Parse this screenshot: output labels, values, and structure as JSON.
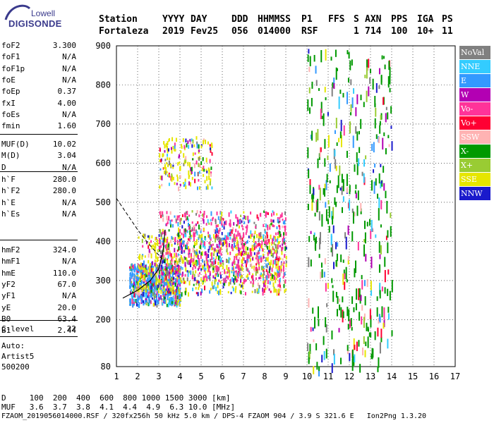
{
  "logo": {
    "line1": "Lowell",
    "line2": "DIGISONDE"
  },
  "header": {
    "labels": [
      "Station",
      "YYYY",
      "DAY",
      "DDD",
      "HHMMSS",
      "P1",
      "FFS",
      "S",
      "AXN",
      "PPS",
      "IGA",
      "PS"
    ],
    "values": [
      "Fortaleza",
      "2019",
      "Fev25",
      "056",
      "014000",
      "RSF",
      "1",
      "714",
      "100",
      "10+",
      "11"
    ]
  },
  "params": {
    "group1": [
      {
        "label": "foF2",
        "value": "3.300"
      },
      {
        "label": "foF1",
        "value": "N/A"
      },
      {
        "label": "foF1p",
        "value": "N/A"
      },
      {
        "label": "foE",
        "value": "N/A"
      },
      {
        "label": "foEp",
        "value": "0.37"
      },
      {
        "label": "fxI",
        "value": "4.00"
      },
      {
        "label": "foEs",
        "value": "N/A"
      },
      {
        "label": "fmin",
        "value": "1.60"
      }
    ],
    "group2": [
      {
        "label": "MUF(D)",
        "value": "10.02"
      },
      {
        "label": "M(D)",
        "value": "3.04"
      },
      {
        "label": "D",
        "value": "N/A"
      }
    ],
    "group3": [
      {
        "label": "h`F",
        "value": "280.0"
      },
      {
        "label": "h`F2",
        "value": "280.0"
      },
      {
        "label": "h`E",
        "value": "N/A"
      },
      {
        "label": "h`Es",
        "value": "N/A"
      }
    ],
    "group4": [
      {
        "label": "hmF2",
        "value": "324.0"
      },
      {
        "label": "hmF1",
        "value": "N/A"
      },
      {
        "label": "hmE",
        "value": "110.0"
      },
      {
        "label": "yF2",
        "value": "67.0"
      },
      {
        "label": "yF1",
        "value": "N/A"
      },
      {
        "label": "yE",
        "value": "20.0"
      },
      {
        "label": "B0",
        "value": "63.4"
      },
      {
        "label": "B1",
        "value": "2.44"
      }
    ],
    "group5": [
      {
        "label": "C-level",
        "value": "22"
      }
    ],
    "auto_lines": [
      "Auto:",
      "Artist5",
      "500200"
    ]
  },
  "legend": [
    {
      "label": "NoVal",
      "color": "#808080"
    },
    {
      "label": "NNE",
      "color": "#33ccff"
    },
    {
      "label": "E",
      "color": "#3399ff"
    },
    {
      "label": "W",
      "color": "#b300b3"
    },
    {
      "label": "Vo-",
      "color": "#ff3399"
    },
    {
      "label": "Vo+",
      "color": "#ff0033"
    },
    {
      "label": "SSW",
      "color": "#ffb3b3"
    },
    {
      "label": "X-",
      "color": "#009900"
    },
    {
      "label": "X+",
      "color": "#99cc33"
    },
    {
      "label": "SSE",
      "color": "#e6e600"
    },
    {
      "label": "NNW",
      "color": "#1a1acc"
    }
  ],
  "footer": {
    "d_line": "D     100  200  400  600  800 1000 1500 3000 [km]",
    "muf_line": "MUF   3.6  3.7  3.8  4.1  4.4  4.9  6.3 10.0 [MHz]",
    "file_line": "FZAOM_2019056014000.RSF / 320fx256h 50 kHz 5.0 km / DPS-4 FZAOM 904 / 3.9 S 321.6 E   Ion2Png 1.3.20"
  },
  "chart_data": {
    "type": "scatter",
    "xlim": [
      1,
      17
    ],
    "ylim": [
      80,
      900
    ],
    "x_ticks": [
      1,
      2,
      3,
      4,
      5,
      6,
      7,
      8,
      9,
      10,
      11,
      12,
      13,
      14,
      15,
      16,
      17
    ],
    "y_ticks": [
      80,
      200,
      300,
      400,
      500,
      600,
      700,
      800,
      900
    ],
    "grid": true,
    "legend_position": "right",
    "traces": [
      {
        "name": "trace-f2",
        "color": "#3399ff",
        "x_range": [
          1.6,
          4.0
        ],
        "y_range": [
          240,
          345
        ]
      },
      {
        "name": "trace-f2-main",
        "color": "#e6e600",
        "x_range": [
          2.0,
          9.0
        ],
        "y_range": [
          270,
          420
        ]
      },
      {
        "name": "trace-spread",
        "color": "#ff3399",
        "x_range": [
          3.0,
          9.0
        ],
        "y_range": [
          300,
          480
        ]
      },
      {
        "name": "trace-high",
        "color": "#e6e600",
        "x_range": [
          3.0,
          5.5
        ],
        "y_range": [
          540,
          670
        ]
      },
      {
        "name": "trace-vertical",
        "color": "#009900",
        "x_range": [
          10.0,
          14.0
        ],
        "y_range": [
          80,
          900
        ]
      }
    ],
    "profile_dashed": [
      [
        1.0,
        510
      ],
      [
        1.5,
        470
      ],
      [
        2.0,
        430
      ],
      [
        2.5,
        395
      ],
      [
        3.0,
        365
      ],
      [
        3.3,
        345
      ]
    ],
    "profile_solid": [
      [
        1.3,
        255
      ],
      [
        2.0,
        275
      ],
      [
        2.6,
        300
      ],
      [
        3.0,
        330
      ],
      [
        3.2,
        375
      ],
      [
        3.3,
        430
      ]
    ]
  }
}
